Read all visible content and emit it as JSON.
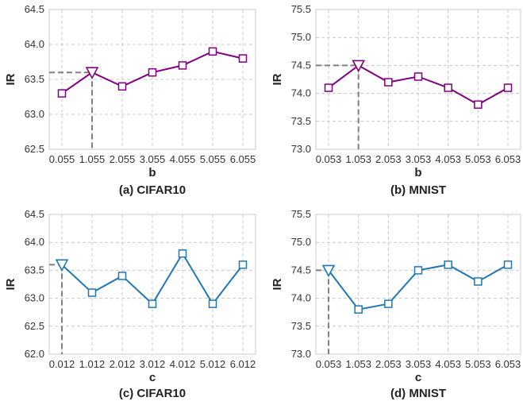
{
  "chart_data": [
    {
      "type": "line",
      "caption": "(a) CIFAR10",
      "xlabel": "b",
      "ylabel": "IR",
      "categories": [
        "0.055",
        "1.055",
        "2.055",
        "3.055",
        "4.055",
        "5.055",
        "6.055"
      ],
      "series": [
        {
          "values": [
            63.3,
            63.6,
            63.4,
            63.6,
            63.7,
            63.9,
            63.8
          ]
        }
      ],
      "ylim": [
        62.5,
        64.5
      ],
      "yticks": [
        "62.5",
        "63.0",
        "63.5",
        "64.0",
        "64.5"
      ],
      "highlight_index": 1,
      "color": "#800080",
      "marker": "square",
      "grid": true
    },
    {
      "type": "line",
      "caption": "(b) MNIST",
      "xlabel": "b",
      "ylabel": "IR",
      "categories": [
        "0.053",
        "1.053",
        "2.053",
        "3.053",
        "4.053",
        "5.053",
        "6.053"
      ],
      "series": [
        {
          "values": [
            74.1,
            74.5,
            74.2,
            74.3,
            74.1,
            73.8,
            74.1
          ]
        }
      ],
      "ylim": [
        73.0,
        75.5
      ],
      "yticks": [
        "73.0",
        "73.5",
        "74.0",
        "74.5",
        "75.0",
        "75.5"
      ],
      "highlight_index": 1,
      "color": "#800080",
      "marker": "square",
      "grid": true
    },
    {
      "type": "line",
      "caption": "(c) CIFAR10",
      "xlabel": "c",
      "ylabel": "IR",
      "categories": [
        "0.012",
        "1.012",
        "2.012",
        "3.012",
        "4.012",
        "5.012",
        "6.012"
      ],
      "series": [
        {
          "values": [
            63.6,
            63.1,
            63.4,
            62.9,
            63.8,
            62.9,
            63.6
          ]
        }
      ],
      "ylim": [
        62.0,
        64.5
      ],
      "yticks": [
        "62.0",
        "62.5",
        "63.0",
        "63.5",
        "64.0",
        "64.5"
      ],
      "highlight_index": 0,
      "color": "#1f77b4",
      "marker": "square",
      "grid": true
    },
    {
      "type": "line",
      "caption": "(d) MNIST",
      "xlabel": "c",
      "ylabel": "IR",
      "categories": [
        "0.053",
        "1.053",
        "2.053",
        "3.053",
        "4.053",
        "5.053",
        "6.053"
      ],
      "series": [
        {
          "values": [
            74.5,
            73.8,
            73.9,
            74.5,
            74.6,
            74.3,
            74.6
          ]
        }
      ],
      "ylim": [
        73.0,
        75.5
      ],
      "yticks": [
        "73.0",
        "73.5",
        "74.0",
        "74.5",
        "75.0",
        "75.5"
      ],
      "highlight_index": 0,
      "color": "#1f77b4",
      "marker": "square",
      "grid": true
    }
  ]
}
